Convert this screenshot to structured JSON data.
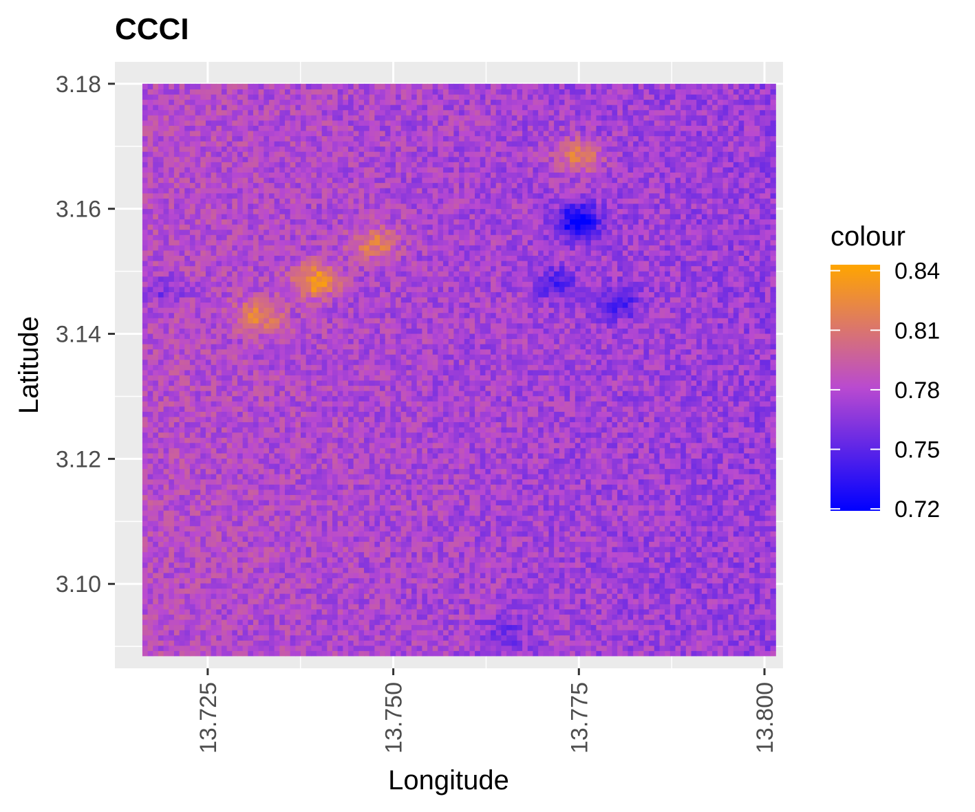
{
  "chart_data": {
    "type": "heatmap",
    "title": "CCCI",
    "xlabel": "Longitude",
    "ylabel": "Latitude",
    "xlim": [
      13.7125,
      13.8025
    ],
    "ylim": [
      3.0865,
      3.1835
    ],
    "x_ticks": [
      13.725,
      13.75,
      13.775,
      13.8
    ],
    "x_tick_labels": [
      "13.725",
      "13.750",
      "13.775",
      "13.800"
    ],
    "y_ticks": [
      3.1,
      3.12,
      3.14,
      3.16,
      3.18
    ],
    "y_tick_labels": [
      "3.10",
      "3.12",
      "3.14",
      "3.16",
      "3.18"
    ],
    "raster_extent": {
      "x": [
        13.7162,
        13.8015
      ],
      "y": [
        3.0885,
        3.18
      ]
    },
    "grid": true,
    "legend": {
      "title": "colour",
      "placement": "right",
      "type": "colorbar",
      "range": [
        0.719,
        0.843
      ],
      "breaks": [
        0.72,
        0.75,
        0.78,
        0.81,
        0.84
      ],
      "break_labels": [
        "0.72",
        "0.75",
        "0.78",
        "0.81",
        "0.84"
      ],
      "colors": [
        "#0000ff",
        "#b94ad0",
        "#ffa500"
      ]
    },
    "value_summary": {
      "typical_range": [
        0.76,
        0.8
      ],
      "high_features": [
        {
          "x": 13.7395,
          "y": 3.1485,
          "value": 0.835
        },
        {
          "x": 13.775,
          "y": 3.1685,
          "value": 0.825
        },
        {
          "x": 13.732,
          "y": 3.143,
          "value": 0.82
        },
        {
          "x": 13.7475,
          "y": 3.1545,
          "value": 0.82
        }
      ],
      "low_features": [
        {
          "x": 13.775,
          "y": 3.158,
          "value": 0.72
        },
        {
          "x": 13.772,
          "y": 3.148,
          "value": 0.75
        },
        {
          "x": 13.78,
          "y": 3.145,
          "value": 0.75
        },
        {
          "x": 13.719,
          "y": 3.147,
          "value": 0.76
        },
        {
          "x": 13.765,
          "y": 3.092,
          "value": 0.76
        }
      ]
    }
  }
}
